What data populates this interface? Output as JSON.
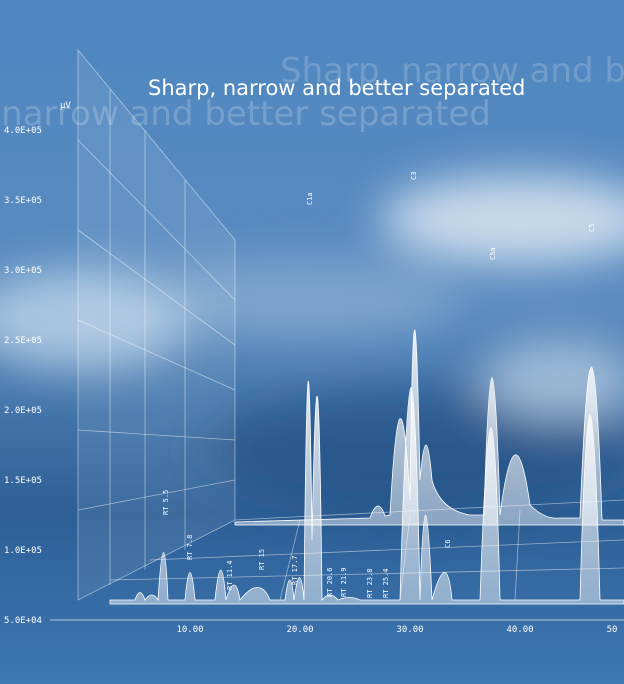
{
  "title": "Sharp, narrow and better separated",
  "unit": "µV",
  "y_axis": [
    "4.0E+05",
    "3.5E+05",
    "3.0E+05",
    "2.5E+05",
    "2.0E+05",
    "1.5E+05",
    "1.0E+05",
    "5.0E+04"
  ],
  "x_axis": [
    "10.00",
    "20.00",
    "30.00",
    "40.00",
    "50"
  ],
  "peak_labels": [
    "RT 5.5",
    "RT 7.8",
    "RT 11.4",
    "RT 15",
    "RT 17.7",
    "RT 20.6",
    "RT 21.9",
    "RT 23.8",
    "RT 25.4",
    "C1a",
    "C3",
    "C6",
    "C5a",
    "C5"
  ]
}
